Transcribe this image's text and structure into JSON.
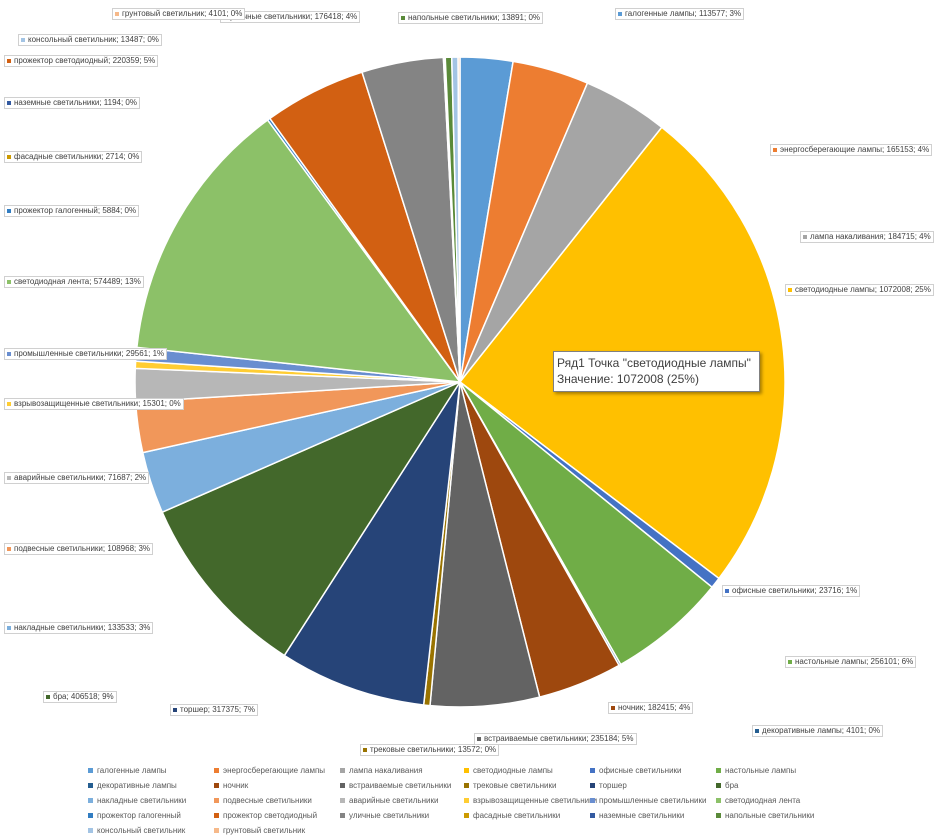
{
  "chart_data": {
    "type": "pie",
    "title": "",
    "series_name": "Ряд1",
    "slices": [
      {
        "name": "галогенные лампы",
        "value": 113577,
        "pct": "3%",
        "color": "#5B9BD5"
      },
      {
        "name": "энергосберегающие лампы",
        "value": 165153,
        "pct": "4%",
        "color": "#ED7D31"
      },
      {
        "name": "лампа накаливания",
        "value": 184715,
        "pct": "4%",
        "color": "#A5A5A5"
      },
      {
        "name": "светодиодные лампы",
        "value": 1072008,
        "pct": "25%",
        "color": "#FFC000"
      },
      {
        "name": "офисные светильники",
        "value": 23716,
        "pct": "1%",
        "color": "#4472C4"
      },
      {
        "name": "настольные лампы",
        "value": 256101,
        "pct": "6%",
        "color": "#70AD47"
      },
      {
        "name": "декоративные лампы",
        "value": 4101,
        "pct": "0%",
        "color": "#255E91"
      },
      {
        "name": "ночник",
        "value": 182415,
        "pct": "4%",
        "color": "#9E480E"
      },
      {
        "name": "встраиваемые светильники",
        "value": 235184,
        "pct": "5%",
        "color": "#636363"
      },
      {
        "name": "трековые светильники",
        "value": 13572,
        "pct": "0%",
        "color": "#997300"
      },
      {
        "name": "торшер",
        "value": 317375,
        "pct": "7%",
        "color": "#264478"
      },
      {
        "name": "бра",
        "value": 406518,
        "pct": "9%",
        "color": "#43682B"
      },
      {
        "name": "накладные светильники",
        "value": 133533,
        "pct": "3%",
        "color": "#7CAFDD"
      },
      {
        "name": "подвесные светильники",
        "value": 108968,
        "pct": "3%",
        "color": "#F1975A"
      },
      {
        "name": "аварийные светильники",
        "value": 71687,
        "pct": "2%",
        "color": "#B7B7B7"
      },
      {
        "name": "взрывозащищенные светильники",
        "value": 15301,
        "pct": "0%",
        "color": "#FFCD33"
      },
      {
        "name": "промышленные светильники",
        "value": 29561,
        "pct": "1%",
        "color": "#698ED0"
      },
      {
        "name": "светодиодная лента",
        "value": 574489,
        "pct": "13%",
        "color": "#8CC168"
      },
      {
        "name": "прожектор галогенный",
        "value": 5884,
        "pct": "0%",
        "color": "#327DC2"
      },
      {
        "name": "прожектор светодиодный",
        "value": 220359,
        "pct": "5%",
        "color": "#D26012"
      },
      {
        "name": "уличные светильники",
        "value": 176418,
        "pct": "4%",
        "color": "#848484"
      },
      {
        "name": "фасадные светильники",
        "value": 2714,
        "pct": "0%",
        "color": "#CC9A00"
      },
      {
        "name": "наземные светильники",
        "value": 1194,
        "pct": "0%",
        "color": "#335AA1"
      },
      {
        "name": "напольные светильники",
        "value": 13891,
        "pct": "0%",
        "color": "#5A8A39"
      },
      {
        "name": "консольный светильник",
        "value": 13487,
        "pct": "0%",
        "color": "#A3C4E4"
      },
      {
        "name": "грунтовый светильник",
        "value": 4101,
        "pct": "0%",
        "color": "#F6B98A"
      }
    ],
    "labels": [
      "галогенные лампы; 113577; 3%",
      "энергосберегающие лампы; 165153; 4%",
      "лампа накаливания; 184715; 4%",
      "светодиодные лампы; 1072008; 25%",
      "офисные светильники; 23716; 1%",
      "настольные лампы; 256101; 6%",
      "декоративные лампы; 4101; 0%",
      "ночник; 182415; 4%",
      "встраиваемые светильники; 235184; 5%",
      "трековые светильники; 13572; 0%",
      "торшер; 317375; 7%",
      "бра; 406518; 9%",
      "накладные светильники; 133533; 3%",
      "подвесные светильники; 108968; 3%",
      "аварийные светильники; 71687; 2%",
      "взрывозащищенные светильники; 15301; 0%",
      "промышленные светильники; 29561; 1%",
      "светодиодная лента; 574489; 13%",
      "прожектор галогенный; 5884; 0%",
      "прожектор светодиодный; 220359; 5%",
      "уличные светильники; 176418; 4%",
      "фасадные светильники; 2714; 0%",
      "наземные светильники; 1194; 0%",
      "напольные светильники; 13891; 0%",
      "консольный светильник; 13487; 0%",
      "грунтовый светильник; 4101; 0%"
    ],
    "legend_position": "bottom",
    "tooltip": {
      "line1": "Ряд1 Точка \"светодиодные лампы\"",
      "line2": "Значение: 1072008 (25%)"
    }
  }
}
